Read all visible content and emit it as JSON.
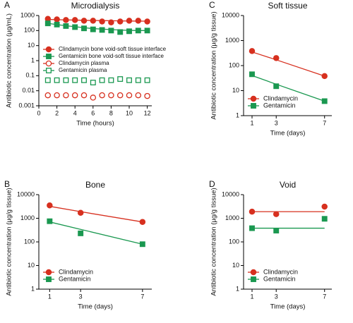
{
  "chart_data": [
    {
      "type": "scatter",
      "panel": "A",
      "title": "Microdialysis",
      "x_label": "Time (hours)",
      "y_label": "Antibiotic concentration (µg/mL)",
      "xlim": [
        0,
        12.5
      ],
      "xticks": [
        0,
        2,
        4,
        6,
        8,
        10,
        12
      ],
      "ylim": [
        0.001,
        1000
      ],
      "yticks": [
        0.001,
        0.01,
        0.1,
        1,
        10,
        100,
        1000
      ],
      "log_y": true,
      "legend": "upper left",
      "series": [
        {
          "name": "Clindamycin bone void-soft tissue interface",
          "color": "#d7301f",
          "marker": "circle",
          "filled": true,
          "x": [
            1,
            2,
            3,
            4,
            5,
            6,
            7,
            8,
            9,
            10,
            11,
            12
          ],
          "values": [
            600,
            550,
            500,
            500,
            450,
            450,
            400,
            350,
            400,
            450,
            450,
            400
          ],
          "line_values": [
            550,
            530,
            510,
            500,
            480,
            470,
            460,
            450,
            440,
            430,
            425,
            420
          ]
        },
        {
          "name": "Gentamicin bone void-soft tissue interface",
          "color": "#1a9850",
          "marker": "square",
          "filled": true,
          "x": [
            1,
            2,
            3,
            4,
            5,
            6,
            7,
            8,
            9,
            10,
            11,
            12
          ],
          "values": [
            300,
            250,
            200,
            170,
            140,
            120,
            110,
            100,
            80,
            90,
            100,
            100
          ],
          "line_values": [
            300,
            250,
            210,
            180,
            155,
            135,
            125,
            115,
            108,
            103,
            100,
            100
          ]
        },
        {
          "name": "Clindamycin plasma",
          "color": "#d7301f",
          "marker": "circle",
          "filled": false,
          "x": [
            1,
            2,
            3,
            4,
            5,
            6,
            7,
            8,
            9,
            10,
            11,
            12
          ],
          "values": [
            0.005,
            0.005,
            0.005,
            0.005,
            0.005,
            0.0035,
            0.005,
            0.005,
            0.005,
            0.005,
            0.005,
            0.0045
          ]
        },
        {
          "name": "Gentamicin plasma",
          "color": "#1a9850",
          "marker": "square",
          "filled": false,
          "x": [
            1,
            2,
            3,
            4,
            5,
            6,
            7,
            8,
            9,
            10,
            11,
            12
          ],
          "values": [
            0.05,
            0.05,
            0.05,
            0.05,
            0.05,
            0.035,
            0.05,
            0.05,
            0.06,
            0.05,
            0.05,
            0.05
          ]
        }
      ]
    },
    {
      "type": "scatter",
      "panel": "B",
      "title": "Bone",
      "x_label": "Time (days)",
      "y_label": "Antibiotic concentration (µg/g tissue)",
      "xlim": [
        0.3,
        7.6
      ],
      "xticks": [
        1,
        3,
        7
      ],
      "ylim": [
        1,
        10000
      ],
      "yticks": [
        1,
        10,
        100,
        1000,
        10000
      ],
      "log_y": true,
      "legend": "lower left",
      "series": [
        {
          "name": "Clindamycin",
          "color": "#d7301f",
          "marker": "circle",
          "filled": true,
          "x": [
            1,
            3,
            7
          ],
          "values": [
            3500,
            1700,
            700
          ],
          "line_values": [
            3200,
            1900,
            700
          ]
        },
        {
          "name": "Gentamicin",
          "color": "#1a9850",
          "marker": "square",
          "filled": true,
          "x": [
            1,
            3,
            7
          ],
          "values": [
            750,
            230,
            80
          ],
          "line_values": [
            700,
            340,
            80
          ]
        }
      ]
    },
    {
      "type": "scatter",
      "panel": "C",
      "title": "Soft tissue",
      "x_label": "Time (days)",
      "y_label": "Antibiotic concentration (µg/g tissue)",
      "xlim": [
        0.3,
        7.6
      ],
      "xticks": [
        1,
        3,
        7
      ],
      "ylim": [
        1,
        10000
      ],
      "yticks": [
        1,
        10,
        100,
        1000,
        10000
      ],
      "log_y": true,
      "legend": "lower left",
      "series": [
        {
          "name": "Clindamycin",
          "color": "#d7301f",
          "marker": "circle",
          "filled": true,
          "x": [
            1,
            3,
            7
          ],
          "values": [
            380,
            200,
            38
          ],
          "line_values": [
            350,
            170,
            38
          ]
        },
        {
          "name": "Gentamicin",
          "color": "#1a9850",
          "marker": "square",
          "filled": true,
          "x": [
            1,
            3,
            7
          ],
          "values": [
            45,
            15,
            3.8
          ],
          "line_values": [
            40,
            18,
            3.8
          ]
        }
      ]
    },
    {
      "type": "scatter",
      "panel": "D",
      "title": "Void",
      "x_label": "Time (days)",
      "y_label": "Antibiotic concentration (µg/g tissue)",
      "xlim": [
        0.3,
        7.6
      ],
      "xticks": [
        1,
        3,
        7
      ],
      "ylim": [
        1,
        10000
      ],
      "yticks": [
        1,
        10,
        100,
        1000,
        10000
      ],
      "log_y": true,
      "legend": "lower left",
      "series": [
        {
          "name": "Clindamycin",
          "color": "#d7301f",
          "marker": "circle",
          "filled": true,
          "x": [
            1,
            3,
            7
          ],
          "values": [
            1900,
            1500,
            3100
          ],
          "line_values": [
            1900,
            1900,
            1900
          ]
        },
        {
          "name": "Gentamicin",
          "color": "#1a9850",
          "marker": "square",
          "filled": true,
          "x": [
            1,
            3,
            7
          ],
          "values": [
            380,
            300,
            950
          ],
          "line_values": [
            380,
            380,
            380
          ]
        }
      ]
    }
  ]
}
